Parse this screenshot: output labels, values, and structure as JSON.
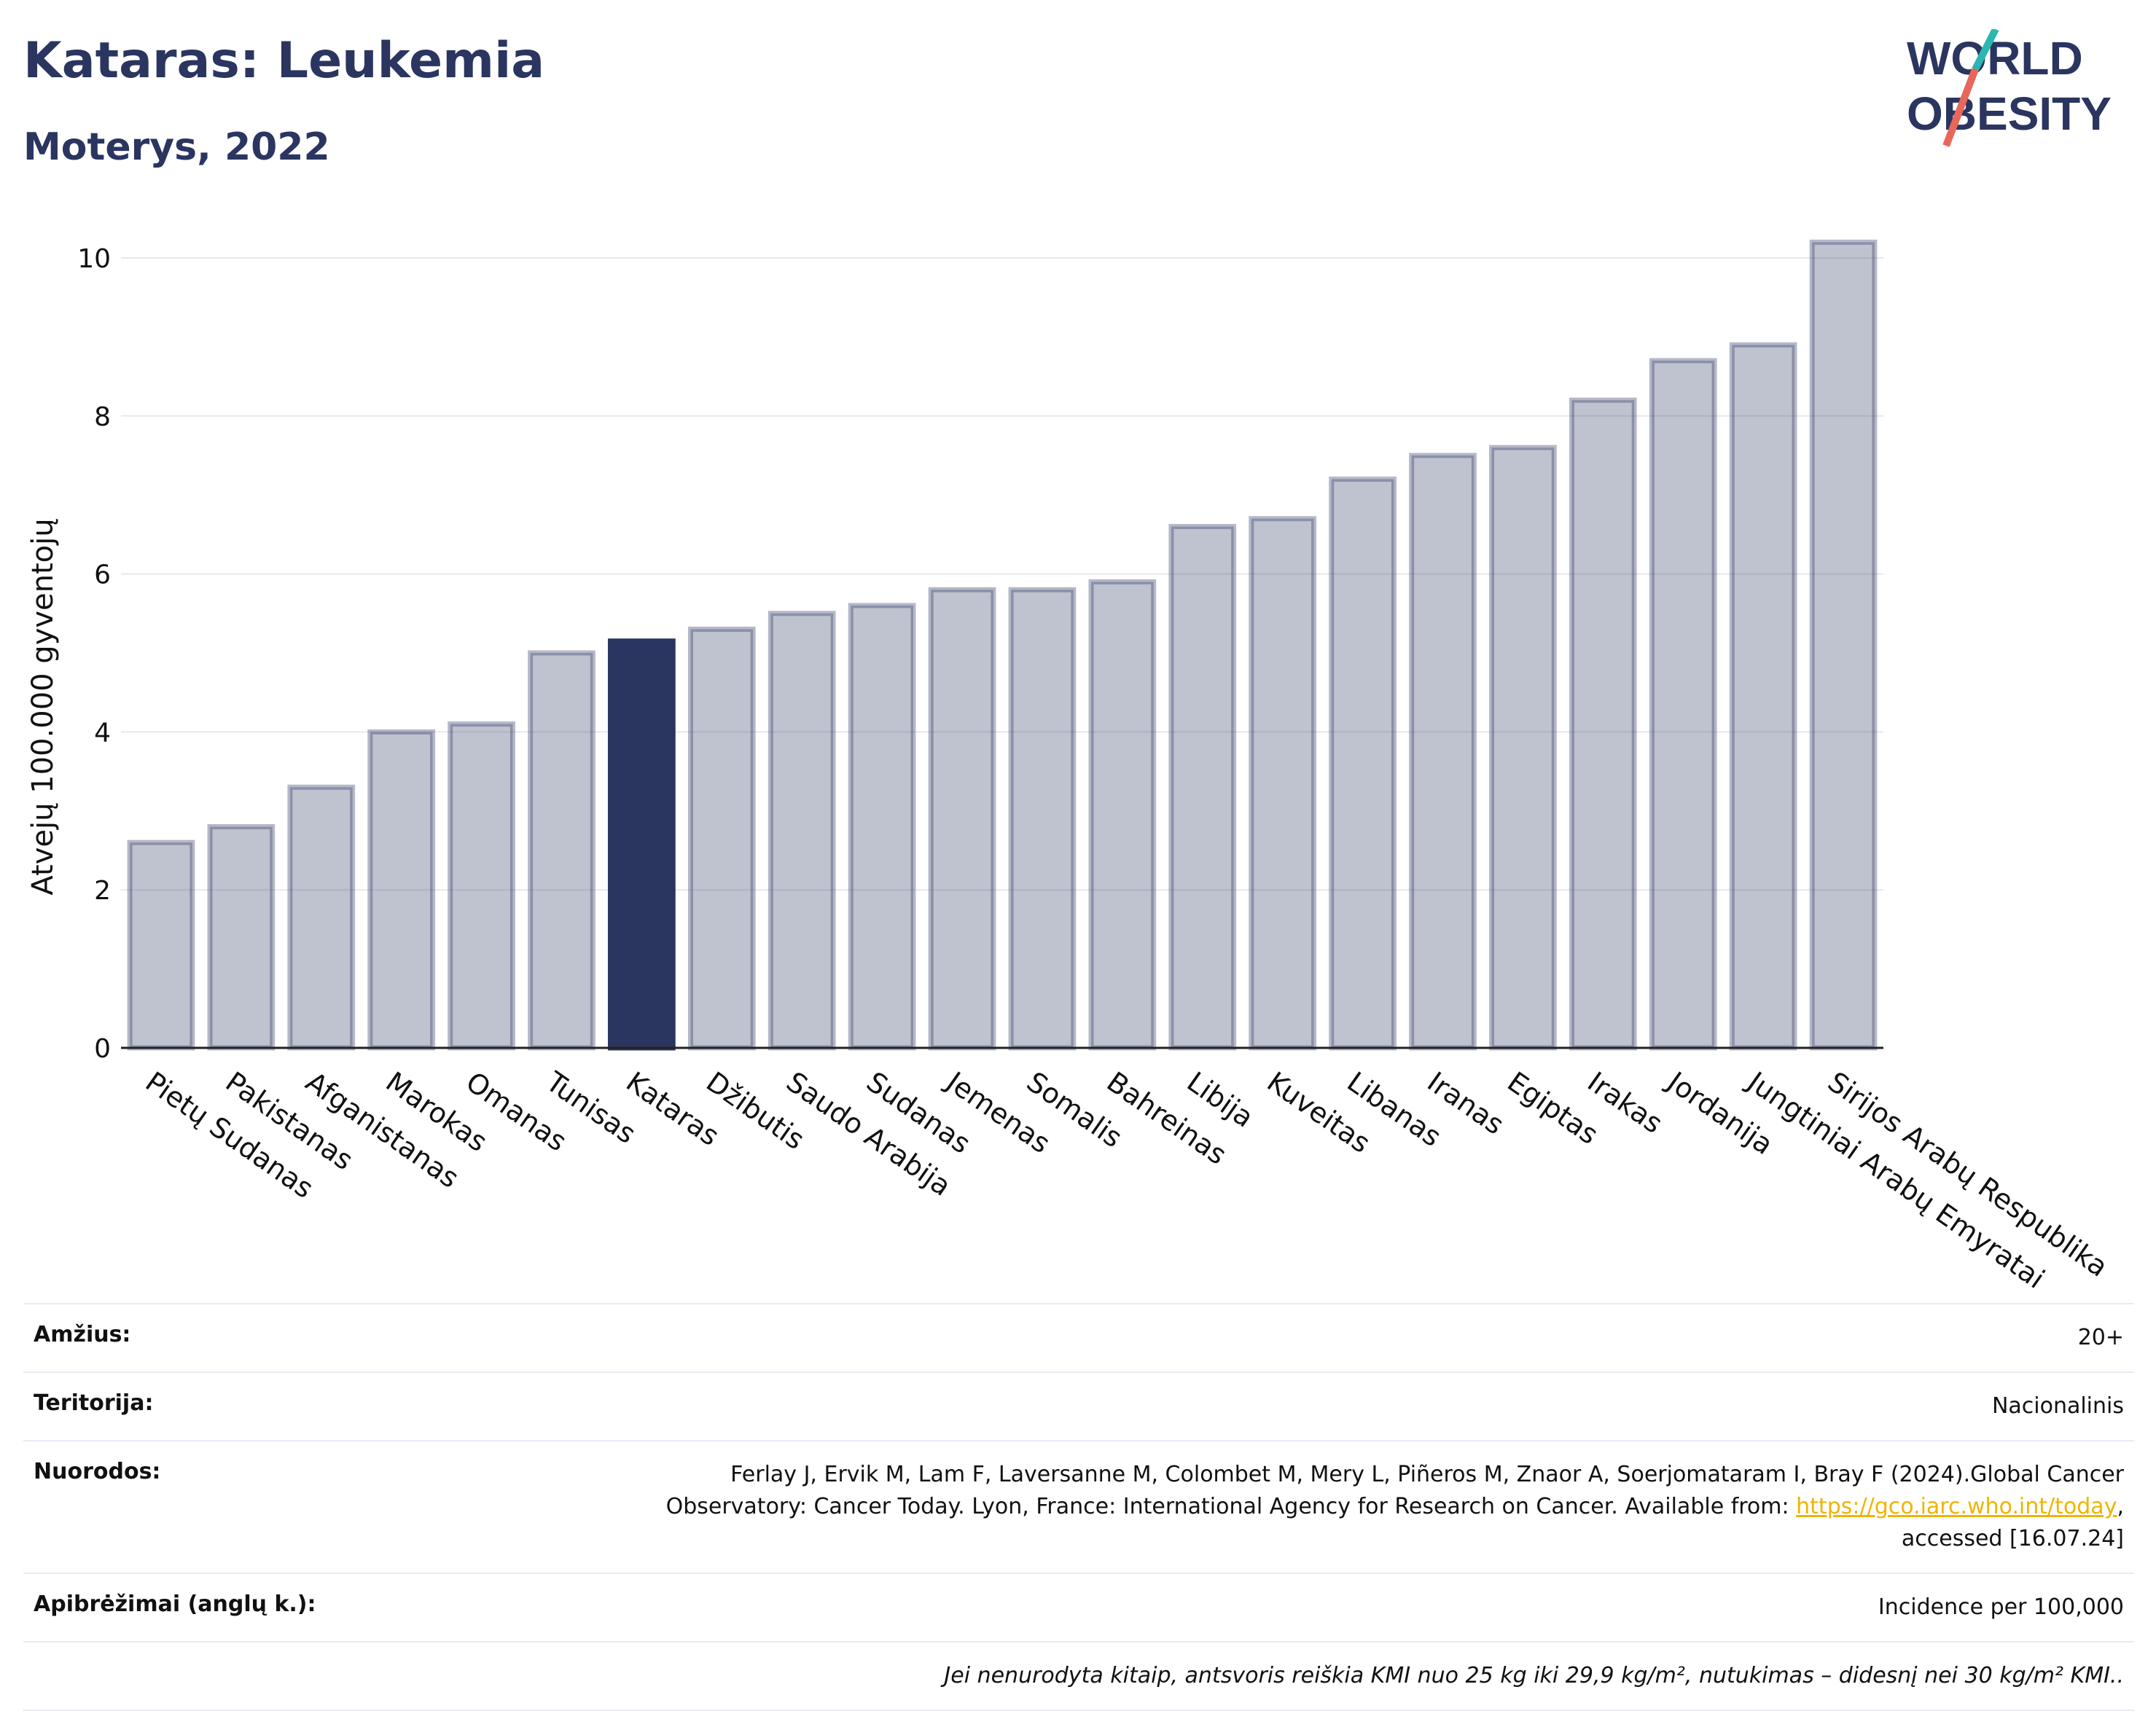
{
  "header": {
    "title": "Kataras: Leukemia",
    "subtitle": "Moterys, 2022"
  },
  "logo": {
    "line1": "WORLD",
    "line2": "OBESITY",
    "icon": "world-obesity-logo"
  },
  "chart_data": {
    "type": "bar",
    "ylabel": "Atvejų 100.000 gyventojų",
    "ylim": [
      0,
      10.5
    ],
    "yticks": [
      0,
      2,
      4,
      6,
      8,
      10
    ],
    "grid": true,
    "highlight": "Kataras",
    "colors": {
      "bar": "#2a3560",
      "bar_fill_opacity": 0.3,
      "highlight": "#2a3560"
    },
    "categories": [
      "Pietų Sudanas",
      "Pakistanas",
      "Afganistanas",
      "Marokas",
      "Omanas",
      "Tunisas",
      "Kataras",
      "Džibutis",
      "Saudo Arabija",
      "Sudanas",
      "Jemenas",
      "Somalis",
      "Bahreinas",
      "Libija",
      "Kuveitas",
      "Libanas",
      "Iranas",
      "Egiptas",
      "Irakas",
      "Jordanija",
      "Jungtiniai Arabų Emyratai",
      "Sirijos Arabų Respublika"
    ],
    "values": [
      2.6,
      2.8,
      3.3,
      4.0,
      4.1,
      5.0,
      5.15,
      5.3,
      5.5,
      5.6,
      5.8,
      5.8,
      5.9,
      6.6,
      6.7,
      7.2,
      7.5,
      7.6,
      8.2,
      8.7,
      8.9,
      10.2
    ]
  },
  "meta": {
    "age_label": "Amžius:",
    "age_value": "20+",
    "territory_label": "Teritorija:",
    "territory_value": "Nacionalinis",
    "refs_label": "Nuorodos:",
    "refs_text_1": "Ferlay J, Ervik M, Lam F, Laversanne M, Colombet M, Mery L, Piñeros M, Znaor A, Soerjomataram I, Bray F (2024).Global Cancer",
    "refs_text_2": "Observatory: Cancer Today. Lyon, France: International Agency for Research on Cancer. Available from: ",
    "refs_link": "https://gco.iarc.who.int/today",
    "refs_text_3": ",",
    "refs_text_4": "accessed [16.07.24]",
    "definitions_label": "Apibrėžimai (anglų k.):",
    "definitions_value": "Incidence per 100,000",
    "footnote": "Jei nenurodyta kitaip, antsvoris reiškia KMI nuo 25 kg iki 29,9 kg/m², nutukimas – didesnį nei 30 kg/m² KMI.."
  }
}
